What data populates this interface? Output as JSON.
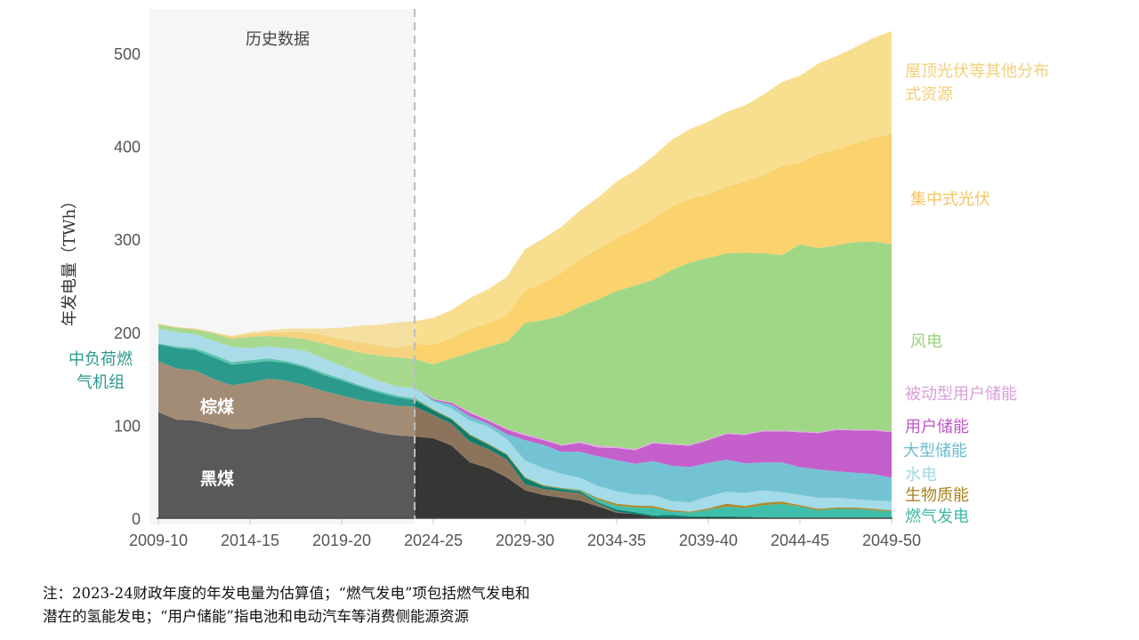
{
  "chart_data": {
    "type": "area",
    "stacked": true,
    "title": "",
    "xlabel": "",
    "ylabel": "年发电量（TWh）",
    "ylim": [
      0,
      500
    ],
    "yticks": [
      0,
      100,
      200,
      300,
      400,
      500
    ],
    "x_start_year": [
      2009,
      2010,
      2011,
      2012,
      2013,
      2014,
      2015,
      2016,
      2017,
      2018,
      2019,
      2020,
      2021,
      2022,
      2023,
      2024,
      2025,
      2026,
      2027,
      2028,
      2029,
      2030,
      2031,
      2032,
      2033,
      2034,
      2035,
      2036,
      2037,
      2038,
      2039,
      2040,
      2041,
      2042,
      2043,
      2044,
      2045,
      2046,
      2047,
      2048,
      2049
    ],
    "xticks": [
      {
        "year": 2009,
        "label": "2009-10"
      },
      {
        "year": 2014,
        "label": "2014-15"
      },
      {
        "year": 2019,
        "label": "2019-20"
      },
      {
        "year": 2024,
        "label": "2024-25"
      },
      {
        "year": 2029,
        "label": "2029-30"
      },
      {
        "year": 2034,
        "label": "2034-35"
      },
      {
        "year": 2039,
        "label": "2039-40"
      },
      {
        "year": 2044,
        "label": "2044-45"
      },
      {
        "year": 2049,
        "label": "2049-50"
      }
    ],
    "history_end_year": 2023,
    "history_label": "历史数据",
    "series": [
      {
        "key": "black_coal",
        "name": "黑煤",
        "color_hist": "#595959",
        "color": "#363634",
        "values": [
          114,
          106,
          105,
          101,
          96,
          96,
          101,
          105,
          108,
          108,
          102,
          97,
          92,
          89,
          88,
          86,
          78,
          60,
          54,
          44,
          30,
          25,
          22,
          19,
          12.5,
          6,
          4.5,
          1.5,
          0,
          0,
          0,
          0,
          0,
          0,
          0,
          0,
          0,
          0,
          0,
          0,
          0
        ]
      },
      {
        "key": "brown_coal",
        "name": "棕煤",
        "color_hist": "#a28c76",
        "color": "#8c745c",
        "values": [
          55,
          55,
          54,
          49,
          47,
          50,
          49,
          43,
          35,
          29,
          30,
          30,
          32,
          32,
          32,
          25,
          23.5,
          22.5,
          20.5,
          19.5,
          6.5,
          6.5,
          7,
          8,
          3,
          1,
          0,
          0,
          0,
          0,
          0,
          0,
          0,
          0,
          0,
          0,
          0,
          0,
          0,
          0,
          0
        ]
      },
      {
        "key": "mid_gas",
        "name": "中负荷燃气机组",
        "color_hist": "#2b9a8d",
        "color": "#0b7d6d",
        "values": [
          18,
          22,
          22,
          23,
          22,
          21,
          19,
          19,
          19,
          17,
          16,
          14.5,
          11,
          9,
          7,
          5,
          4.5,
          6.5,
          4.5,
          4.5,
          6.5,
          3,
          2.5,
          2,
          1.5,
          2.5,
          2,
          1.5,
          3.5,
          2,
          2,
          2,
          1.5,
          1,
          0.5,
          0,
          0,
          0,
          0,
          0,
          0
        ]
      },
      {
        "key": "gas",
        "name": "燃气发电",
        "color_hist": "#5cc4ad",
        "color": "#3fbfaa",
        "values": [
          1,
          1.5,
          2,
          3,
          3,
          3,
          3,
          2,
          2,
          2.5,
          2,
          1.5,
          2,
          2,
          2,
          1,
          1,
          1,
          1,
          1,
          1,
          1,
          1,
          1,
          3,
          4,
          5,
          8,
          3.5,
          4,
          7,
          10.5,
          9.5,
          13,
          15,
          12.5,
          8.5,
          10,
          10,
          8.5,
          7.5
        ]
      },
      {
        "key": "biomass",
        "name": "生物质能",
        "color_hist": "#b08a2a",
        "color": "#b08a2a",
        "values": [
          0,
          0,
          0,
          0,
          0,
          0,
          0,
          0,
          0,
          0,
          0,
          0,
          0,
          0,
          0,
          0,
          0,
          0,
          0,
          0,
          0,
          0,
          0,
          0.5,
          1.5,
          2,
          2,
          2,
          1.5,
          1,
          1.5,
          3,
          2,
          2.5,
          2.5,
          1.5,
          1.5,
          1.5,
          1.5,
          1.5,
          1
        ]
      },
      {
        "key": "hydro",
        "name": "水电",
        "color_hist": "#a9dce8",
        "color": "#a3dbe8",
        "values": [
          16,
          15.5,
          15,
          15,
          16.5,
          13,
          13,
          14,
          16,
          15.5,
          14,
          13,
          11,
          9.5,
          11,
          8.5,
          11,
          15,
          18.5,
          16.5,
          18,
          18.5,
          15,
          13,
          13,
          13.5,
          12,
          12,
          10,
          10,
          13,
          13,
          14,
          13.5,
          10,
          11,
          12,
          10.5,
          9,
          9,
          10
        ]
      },
      {
        "key": "large_storage",
        "name": "大型储能",
        "color_hist": "#74c3d4",
        "color": "#74c3d4",
        "values": [
          0,
          0,
          0,
          0,
          0,
          0,
          0,
          0,
          0,
          0,
          0,
          0,
          0,
          0,
          0,
          1.5,
          4,
          4.5,
          3,
          5,
          22,
          25,
          24,
          28,
          32,
          33.5,
          33,
          36.5,
          38,
          38,
          36,
          34.5,
          32,
          30,
          32,
          30,
          30.5,
          28.5,
          28.5,
          28.5,
          25
        ]
      },
      {
        "key": "user_storage",
        "name": "用户储能",
        "color_hist": "#c45fcc",
        "color": "#c45fcc",
        "values": [
          0,
          0,
          0,
          0,
          0,
          0,
          0,
          0,
          0,
          0,
          0,
          0,
          0,
          0,
          0,
          1,
          2,
          3.5,
          3.5,
          5,
          5,
          5,
          6.5,
          9.5,
          9.5,
          13,
          14.5,
          19,
          22.5,
          23,
          24.5,
          27.5,
          30.5,
          33.5,
          33.5,
          37.5,
          39,
          44.5,
          45.5,
          47,
          49
        ]
      },
      {
        "key": "passive_storage",
        "name": "被动型用户储能",
        "color_hist": "#e0a8e0",
        "color": "#e0a8e0",
        "values": [
          0,
          0,
          0,
          0,
          0,
          0,
          0,
          0,
          0,
          0,
          0,
          0,
          0,
          0,
          0,
          0.5,
          0.5,
          1.5,
          1,
          1,
          1.5,
          1.5,
          1,
          1.5,
          2,
          1.5,
          1.5,
          1.5,
          1,
          1,
          1,
          1,
          1,
          1,
          1,
          1,
          1,
          1,
          1,
          1,
          1
        ]
      },
      {
        "key": "wind",
        "name": "风电",
        "color_hist": "#a8d98e",
        "color": "#a0d787",
        "values": [
          4,
          5,
          5,
          8,
          8.5,
          12,
          11,
          12,
          12.5,
          16,
          19,
          22,
          27,
          31.5,
          31,
          37,
          47.5,
          63.5,
          78.5,
          93,
          119.5,
          127.5,
          139,
          145,
          157.5,
          167.5,
          175.5,
          174.5,
          187,
          196,
          195,
          193.5,
          195,
          190.5,
          188.5,
          201,
          198,
          197.5,
          201.5,
          202,
          201
        ]
      },
      {
        "key": "utility_solar",
        "name": "集中式光伏",
        "color_hist": "#f6d27e",
        "color": "#fad26e",
        "values": [
          1,
          0.5,
          1,
          1,
          2,
          3,
          4,
          5,
          7.5,
          9,
          9.5,
          11,
          11,
          10,
          16,
          21,
          22,
          25.5,
          25.5,
          28.5,
          35,
          40,
          46,
          51,
          54,
          57,
          60.5,
          66,
          68.5,
          68.5,
          68.5,
          71.5,
          76.5,
          84.5,
          95.5,
          88,
          101.5,
          103,
          106,
          112,
          119
        ]
      },
      {
        "key": "rooftop_solar",
        "name": "屋顶光伏等其他分布式资源",
        "color_hist": "#f4dfa0",
        "color": "#f8df90",
        "values": [
          0,
          0,
          0,
          0,
          1,
          2,
          2,
          4,
          4,
          7,
          12.5,
          18,
          22,
          27.6,
          25,
          29,
          30,
          33.5,
          36.5,
          41.5,
          44.5,
          48,
          49.5,
          52.5,
          55.5,
          60.5,
          63.5,
          67,
          71.5,
          75,
          78,
          80.5,
          82,
          86,
          90.5,
          93.5,
          97,
          100.5,
          103.5,
          107,
          110.5
        ]
      }
    ],
    "direct_labels": {
      "rooftop_solar": [
        "屋顶光伏等其他分布",
        "式资源"
      ],
      "utility_solar": "集中式光伏",
      "wind": "风电",
      "passive_storage": "被动型用户储能",
      "user_storage": "用户储能",
      "large_storage": "大型储能",
      "hydro": "水电",
      "biomass": "生物质能",
      "gas": "燃气发电",
      "mid_gas": [
        "中负荷燃",
        "气机组"
      ],
      "brown_coal": "棕煤",
      "black_coal": "黑煤"
    },
    "label_colors": {
      "rooftop_solar": "#f3cf78",
      "utility_solar": "#f3c661",
      "wind": "#98d27e",
      "passive_storage": "#d9a0d9",
      "user_storage": "#c056c8",
      "large_storage": "#6cbccf",
      "hydro": "#a3d8e4",
      "biomass": "#a8821e",
      "gas": "#3fbaa6",
      "mid_gas": "#2a9a8c"
    }
  },
  "footnote": {
    "line1": "注：2023-24财政年度的年发电量为估算值；“燃气发电”项包括燃气发电和",
    "line2": "潜在的氢能发电；“用户储能”指电池和电动汽车等消费侧能源资源"
  }
}
